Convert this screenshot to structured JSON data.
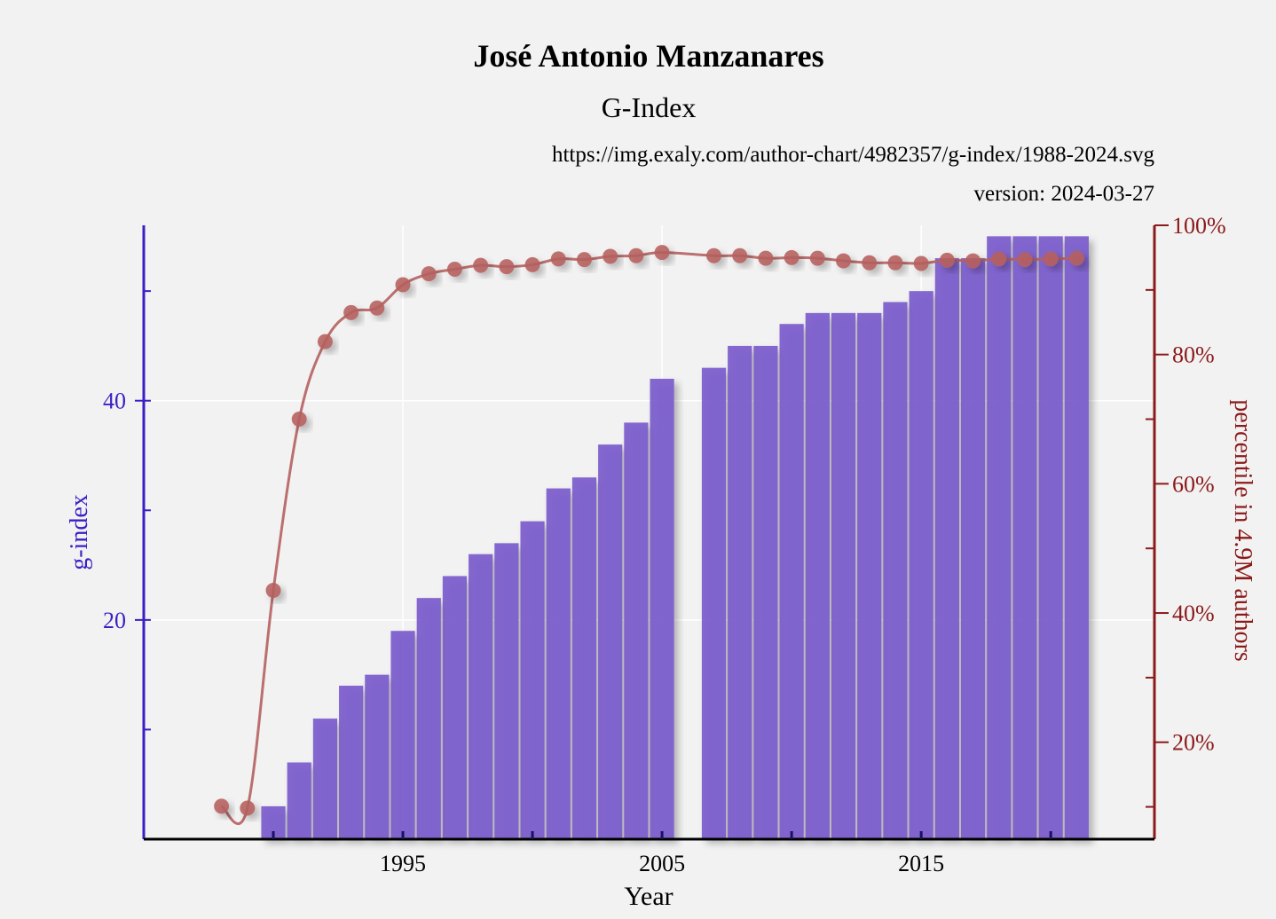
{
  "title": "José Antonio Manzanares",
  "subtitle": "G-Index",
  "source_url": "https://img.exaly.com/author-chart/4982357/g-index/1988-2024.svg",
  "version": "version: 2024-03-27",
  "colors": {
    "bar": "#7b5ccc",
    "line": "#b5605f",
    "left_axis": "#3b1fc4",
    "right_axis": "#8b1a1a",
    "background": "#f2f2f2"
  },
  "chart_data": {
    "type": "bar",
    "xlabel": "Year",
    "ylabel": "g-index",
    "y2label": "percentile in 4.9M authors",
    "xlim": [
      1985,
      2024
    ],
    "ylim": [
      0,
      56
    ],
    "y2lim": [
      5,
      100
    ],
    "x_ticks": [
      1995,
      2005,
      2015
    ],
    "x_tick_labels": [
      "1995",
      "2005",
      "2015"
    ],
    "y_ticks": [
      20,
      40
    ],
    "y_tick_labels": [
      "20",
      "40"
    ],
    "y2_ticks": [
      20,
      40,
      60,
      80,
      100
    ],
    "y2_tick_labels": [
      "20%",
      "40%",
      "60%",
      "80%",
      "100%"
    ],
    "grid": true,
    "bars": {
      "name": "g-index",
      "x": [
        1990,
        1991,
        1992,
        1993,
        1994,
        1995,
        1996,
        1997,
        1998,
        1999,
        2000,
        2001,
        2002,
        2003,
        2004,
        2005,
        2007,
        2008,
        2009,
        2010,
        2011,
        2012,
        2013,
        2014,
        2015,
        2016,
        2017,
        2018,
        2019,
        2020,
        2021
      ],
      "values": [
        3,
        7,
        11,
        14,
        15,
        19,
        22,
        24,
        26,
        27,
        29,
        32,
        33,
        36,
        38,
        42,
        43,
        45,
        45,
        47,
        48,
        48,
        48,
        49,
        50,
        53,
        53,
        55,
        55,
        55,
        55
      ]
    },
    "line": {
      "name": "percentile",
      "x": [
        1988,
        1989,
        1990,
        1991,
        1992,
        1993,
        1994,
        1995,
        1996,
        1997,
        1998,
        1999,
        2000,
        2001,
        2002,
        2003,
        2004,
        2005,
        2007,
        2008,
        2009,
        2010,
        2011,
        2012,
        2013,
        2014,
        2015,
        2016,
        2017,
        2018,
        2019,
        2020,
        2021
      ],
      "values": [
        10.1,
        9.8,
        43.5,
        70,
        82,
        86.5,
        87.2,
        90.8,
        92.5,
        93.2,
        93.8,
        93.6,
        93.9,
        94.8,
        94.7,
        95.2,
        95.3,
        95.8,
        95.3,
        95.3,
        94.9,
        95.0,
        94.9,
        94.5,
        94.2,
        94.2,
        94.1,
        94.6,
        94.5,
        94.8,
        94.7,
        94.8,
        94.9
      ]
    }
  }
}
